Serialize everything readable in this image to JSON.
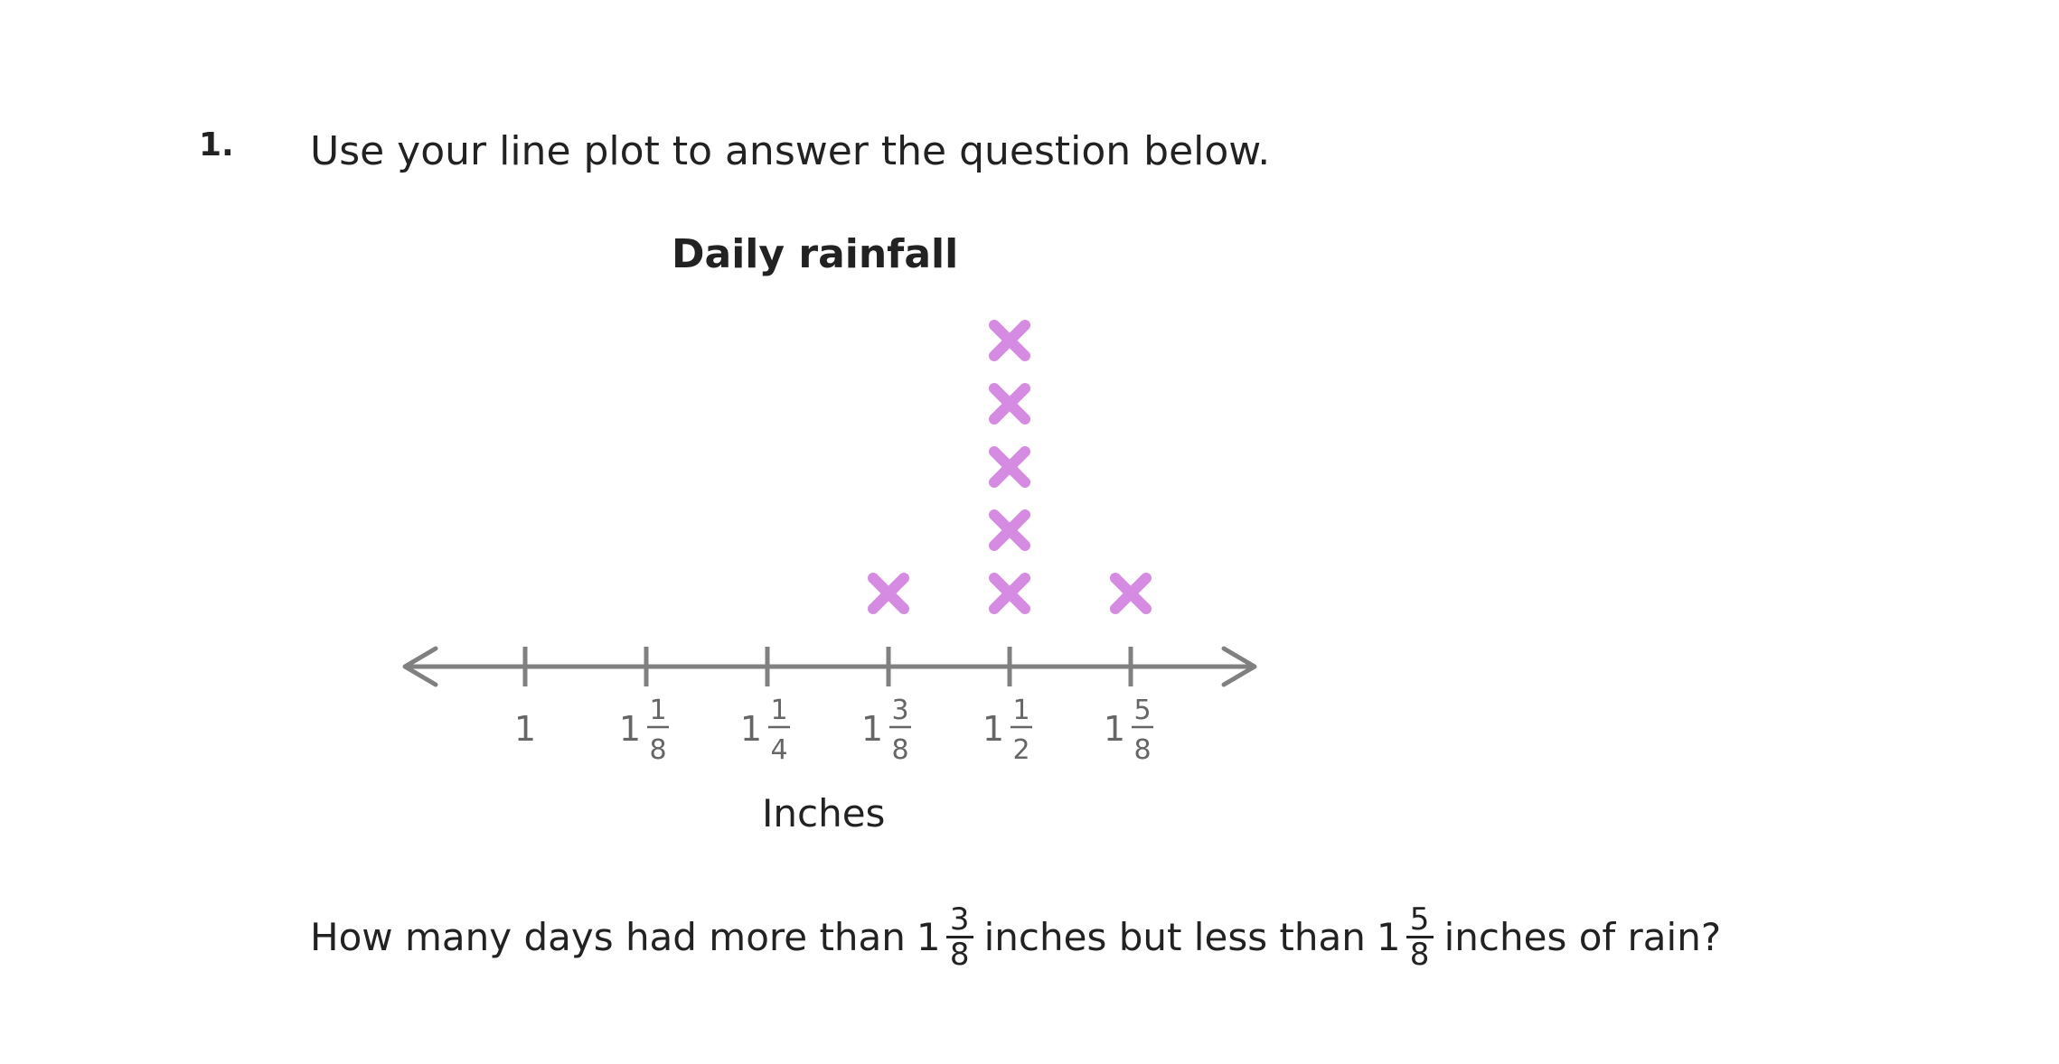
{
  "question_number": "1.",
  "prompt": "Use your line plot to answer the question below.",
  "chart_data": {
    "type": "scatter",
    "title": "Daily rainfall",
    "xlabel": "Inches",
    "ylabel": "",
    "xlim": [
      0.875,
      1.75
    ],
    "ticks": [
      {
        "value": 1.0,
        "whole": "1",
        "num": "",
        "den": ""
      },
      {
        "value": 1.125,
        "whole": "1",
        "num": "1",
        "den": "8"
      },
      {
        "value": 1.25,
        "whole": "1",
        "num": "1",
        "den": "4"
      },
      {
        "value": 1.375,
        "whole": "1",
        "num": "3",
        "den": "8"
      },
      {
        "value": 1.5,
        "whole": "1",
        "num": "1",
        "den": "2"
      },
      {
        "value": 1.625,
        "whole": "1",
        "num": "5",
        "den": "8"
      }
    ],
    "points": [
      {
        "x": 1.375,
        "count": 1
      },
      {
        "x": 1.5,
        "count": 5
      },
      {
        "x": 1.625,
        "count": 1
      }
    ],
    "mark_color": "#d68be3",
    "axis_color": "#808080"
  },
  "question": {
    "part1": "How many days had more than",
    "frac1": {
      "whole": "1",
      "num": "3",
      "den": "8"
    },
    "part2": "inches but less than",
    "frac2": {
      "whole": "1",
      "num": "5",
      "den": "8"
    },
    "part3": "inches of rain?"
  }
}
